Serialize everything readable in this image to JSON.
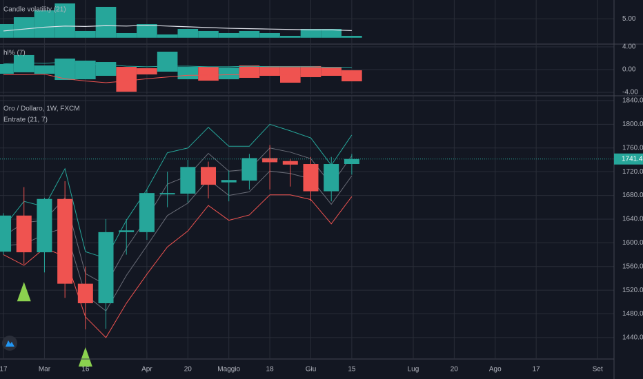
{
  "chart_data": [
    {
      "type": "histogram",
      "title": "Candle volatility (21)",
      "color": "#26a69a",
      "values": [
        3.61,
        5.44,
        7.26,
        9.09,
        1.79,
        8.18,
        1.24,
        3.61,
        0.87,
        2.33,
        1.79,
        1.24,
        1.79,
        1.24,
        0.51,
        2.33,
        2.33,
        0.51
      ],
      "line": {
        "color": "#e0e3eb",
        "values": [
          1.8,
          2.3,
          2.8,
          3.1,
          3.0,
          3.2,
          3.1,
          3.3,
          3.1,
          2.9,
          2.7,
          2.5,
          2.4,
          2.3,
          2.2,
          2.1,
          2.1,
          1.9
        ]
      },
      "ylim": [
        -1.5,
        10
      ],
      "yticks": [
        {
          "value": 5,
          "label": "5.00"
        }
      ]
    },
    {
      "type": "floating-bar",
      "title": "hl% (7)",
      "up_color": "#26a69a",
      "down_color": "#ef5350",
      "open": [
        -0.73,
        -0.48,
        -0.73,
        -1.82,
        -1.7,
        -1.09,
        0.48,
        0.24,
        -0.36,
        -1.7,
        0.48,
        -1.7,
        0.73,
        0.61,
        0.61,
        0.61,
        0.48,
        -0.12
      ],
      "close": [
        0.97,
        2.55,
        0.73,
        1.94,
        1.58,
        1.33,
        -3.88,
        -0.85,
        3.15,
        0.48,
        -1.94,
        0.36,
        -1.45,
        -1.09,
        -2.3,
        -1.33,
        -1.09,
        -2.06
      ],
      "lines": [
        {
          "color": "#26a69a",
          "values": [
            1.0,
            1.2,
            1.1,
            1.3,
            1.0,
            0.9,
            0.6,
            0.5,
            0.6,
            0.6,
            0.5,
            0.5,
            0.6,
            0.5,
            0.5,
            0.5,
            0.4,
            0.4
          ]
        },
        {
          "color": "#ef5350",
          "values": [
            -0.9,
            -0.9,
            -0.8,
            -1.6,
            -2.0,
            -2.3,
            -2.0,
            -1.6,
            -1.3,
            -1.0,
            -1.0,
            -0.9,
            -0.9,
            -0.9,
            -0.8,
            -0.8,
            -0.8,
            -0.8
          ]
        }
      ],
      "ylim": [
        -4.36,
        4.36
      ],
      "yticks": [
        {
          "value": 4,
          "label": "4.00"
        },
        {
          "value": 0,
          "label": "0.00"
        },
        {
          "value": -4,
          "label": "-4.00"
        }
      ]
    },
    {
      "type": "candlestick",
      "title": "Oro / Dollaro, 1W, FXCM",
      "subtitle": "Entrate (21, 7)",
      "up_color": "#26a69a",
      "down_color": "#ef5350",
      "open": [
        1585,
        1646,
        1584,
        1674,
        1531,
        1498,
        1618,
        1618,
        1682,
        1683,
        1728,
        1702,
        1705,
        1743,
        1738,
        1733,
        1687,
        1733
      ],
      "high": [
        1650,
        1694,
        1676,
        1704,
        1560,
        1640,
        1640,
        1690,
        1720,
        1740,
        1737,
        1722,
        1750,
        1765,
        1742,
        1745,
        1745,
        1750
      ],
      "low": [
        1580,
        1564,
        1550,
        1507,
        1454,
        1455,
        1580,
        1605,
        1660,
        1668,
        1675,
        1670,
        1690,
        1690,
        1695,
        1670,
        1670,
        1715
      ],
      "close": [
        1646,
        1584,
        1674,
        1531,
        1498,
        1618,
        1621,
        1684,
        1684,
        1728,
        1698,
        1706,
        1743,
        1736,
        1732,
        1687,
        1733,
        1741.46
      ],
      "bands": [
        {
          "color": "#26a69a",
          "values": [
            1626,
            1670,
            1661,
            1725,
            1585,
            1574,
            1638,
            1690,
            1752,
            1760,
            1795,
            1763,
            1763,
            1800,
            1789,
            1777,
            1731,
            1782
          ]
        },
        {
          "color": "#6a6d78",
          "values": [
            1611,
            1634,
            1638,
            1676,
            1548,
            1529,
            1591,
            1642,
            1699,
            1713,
            1751,
            1721,
            1724,
            1760,
            1753,
            1742,
            1698,
            1747
          ]
        },
        {
          "color": "#6a6d78",
          "values": [
            1595,
            1598,
            1614,
            1626,
            1512,
            1485,
            1545,
            1595,
            1646,
            1667,
            1707,
            1680,
            1686,
            1721,
            1717,
            1708,
            1665,
            1713
          ]
        },
        {
          "color": "#ef5350",
          "values": [
            1580,
            1562,
            1591,
            1577,
            1475,
            1440,
            1498,
            1547,
            1593,
            1620,
            1663,
            1638,
            1647,
            1681,
            1681,
            1673,
            1632,
            1678
          ]
        }
      ],
      "signals": [
        1,
        4
      ],
      "signal_color": "#8bd14f",
      "ylim": [
        1405,
        1847
      ],
      "yticks": [
        {
          "value": 1440,
          "label": "1440.00"
        },
        {
          "value": 1480,
          "label": "1480.00"
        },
        {
          "value": 1520,
          "label": "1520.00"
        },
        {
          "value": 1560,
          "label": "1560.00"
        },
        {
          "value": 1600,
          "label": "1600.00"
        },
        {
          "value": 1640,
          "label": "1640.00"
        },
        {
          "value": 1680,
          "label": "1680.00"
        },
        {
          "value": 1720,
          "label": "1720.00"
        },
        {
          "value": 1760,
          "label": "1760.00"
        },
        {
          "value": 1800,
          "label": "1800.00"
        },
        {
          "value": 1840,
          "label": "1840.00"
        }
      ],
      "xlim": [
        -0.17,
        29.8
      ],
      "xticks": [
        {
          "value": 0,
          "label": "17"
        },
        {
          "value": 2,
          "label": "Mar"
        },
        {
          "value": 4,
          "label": "16"
        },
        {
          "value": 7,
          "label": "Apr"
        },
        {
          "value": 9,
          "label": "20"
        },
        {
          "value": 11,
          "label": "Maggio"
        },
        {
          "value": 13,
          "label": "18"
        },
        {
          "value": 15,
          "label": "Giu"
        },
        {
          "value": 17,
          "label": "15"
        },
        {
          "value": 20,
          "label": "Lug"
        },
        {
          "value": 22,
          "label": "20"
        },
        {
          "value": 24,
          "label": "Ago"
        },
        {
          "value": 26,
          "label": "17"
        },
        {
          "value": 29,
          "label": "Set"
        }
      ]
    }
  ]
}
